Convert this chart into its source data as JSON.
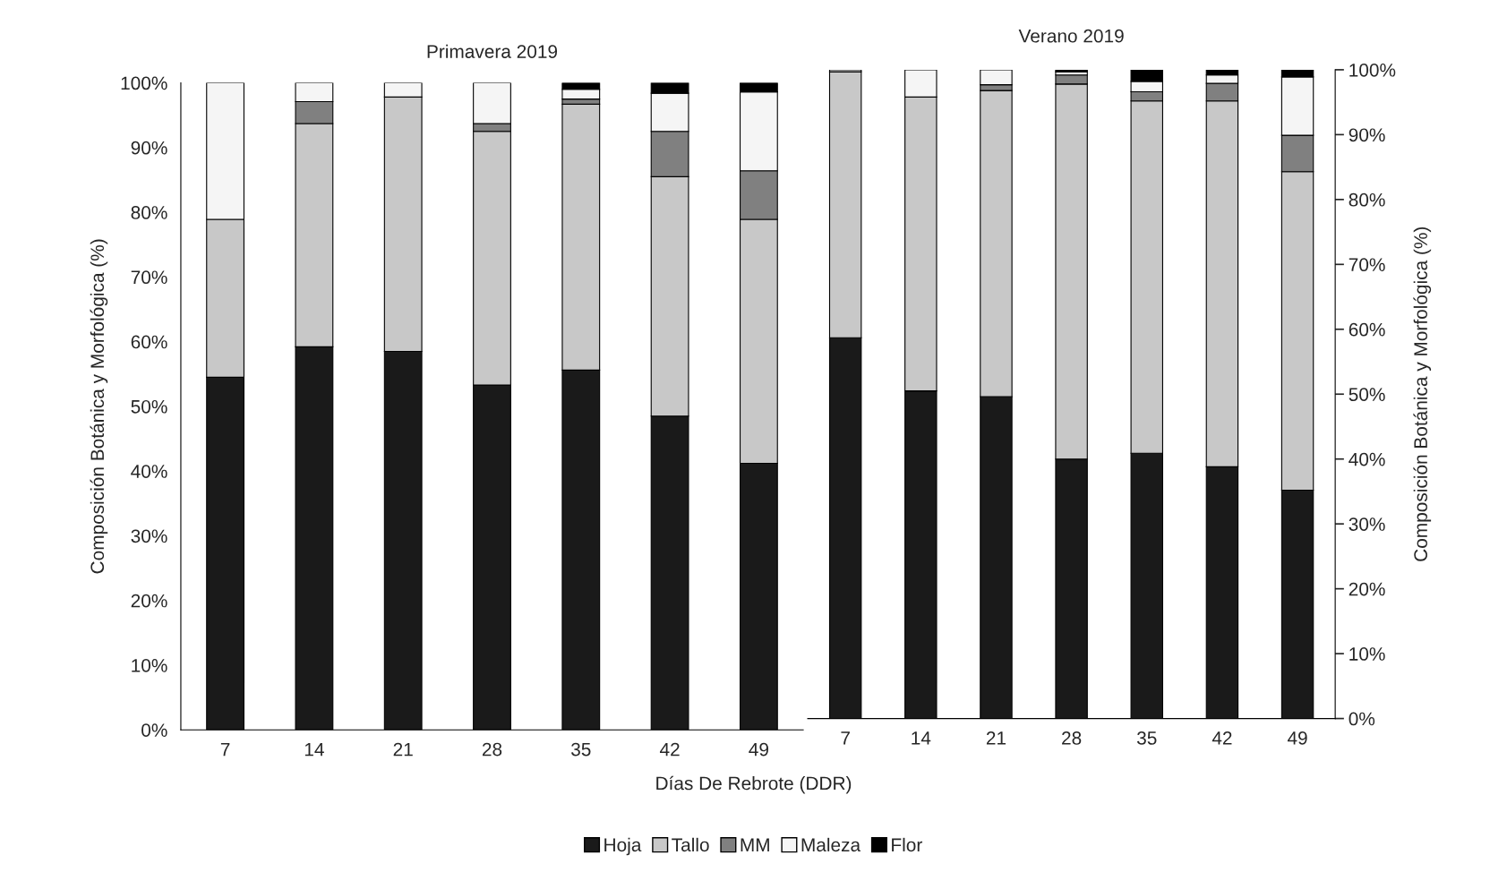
{
  "chart_data": [
    {
      "type": "bar",
      "title": "Primavera 2019",
      "xlabel": "Días De Rebrote (DDR)",
      "ylabel": "Composición Botánica y Morfológica (%)",
      "categories": [
        "7",
        "14",
        "21",
        "28",
        "35",
        "42",
        "49"
      ],
      "stacked": true,
      "ylim": [
        0,
        100
      ],
      "yticks": [
        {
          "value": 0,
          "label": "0%"
        },
        {
          "value": 10,
          "label": "10%"
        },
        {
          "value": 20,
          "label": "20%"
        },
        {
          "value": 30,
          "label": "30%"
        },
        {
          "value": 40,
          "label": "40%"
        },
        {
          "value": 50,
          "label": "50%"
        },
        {
          "value": 60,
          "label": "60%"
        },
        {
          "value": 70,
          "label": "70%"
        },
        {
          "value": 80,
          "label": "80%"
        },
        {
          "value": 90,
          "label": "90%"
        },
        {
          "value": 100,
          "label": "100%"
        }
      ],
      "legend": "bottom",
      "series": [
        {
          "name": "Hoja",
          "color": "#1a1a1a",
          "values": [
            54.5,
            59.2,
            58.5,
            53.3,
            55.6,
            48.5,
            41.2
          ]
        },
        {
          "name": "Tallo",
          "color": "#c8c8c8",
          "values": [
            24.4,
            34.5,
            39.3,
            39.2,
            41.1,
            37.0,
            37.7
          ]
        },
        {
          "name": "MM",
          "color": "#808080",
          "values": [
            0,
            3.4,
            0,
            1.2,
            0.8,
            7.0,
            7.5
          ]
        },
        {
          "name": "Maleza",
          "color": "#f5f5f5",
          "values": [
            21.1,
            2.9,
            2.2,
            6.3,
            1.5,
            5.9,
            12.2
          ]
        },
        {
          "name": "Flor",
          "color": "#000000",
          "values": [
            0,
            0,
            0,
            0,
            1.0,
            1.6,
            1.4
          ]
        }
      ]
    },
    {
      "type": "bar",
      "title": "Verano 2019",
      "ylabel": "Composición Botánica y Morfológica (%)",
      "categories": [
        "7",
        "14",
        "21",
        "28",
        "35",
        "42",
        "49"
      ],
      "stacked": true,
      "ylim": [
        0,
        100
      ],
      "yticks": [
        {
          "value": 0,
          "label": "0%"
        },
        {
          "value": 10,
          "label": "10%"
        },
        {
          "value": 20,
          "label": "20%"
        },
        {
          "value": 30,
          "label": "30%"
        },
        {
          "value": 40,
          "label": "40%"
        },
        {
          "value": 50,
          "label": "50%"
        },
        {
          "value": 60,
          "label": "60%"
        },
        {
          "value": 70,
          "label": "70%"
        },
        {
          "value": 80,
          "label": "80%"
        },
        {
          "value": 90,
          "label": "90%"
        },
        {
          "value": 100,
          "label": "100%"
        }
      ],
      "series": [
        {
          "color": "#1a1a1a",
          "values": [
            58.7,
            50.5,
            49.6,
            40.0,
            40.9,
            38.8,
            35.2
          ]
        },
        {
          "color": "#c8c8c8",
          "values": [
            41.0,
            45.3,
            47.2,
            57.8,
            54.3,
            56.4,
            49.1
          ]
        },
        {
          "color": "#808080",
          "values": [
            0,
            0,
            0.9,
            1.4,
            1.4,
            2.7,
            5.6
          ]
        },
        {
          "color": "#f5f5f5",
          "values": [
            0.3,
            4.2,
            2.3,
            0.5,
            1.6,
            1.3,
            9.0
          ]
        },
        {
          "color": "#000000",
          "values": [
            0,
            0,
            0,
            0.3,
            1.8,
            0.8,
            1.1
          ]
        }
      ]
    }
  ]
}
